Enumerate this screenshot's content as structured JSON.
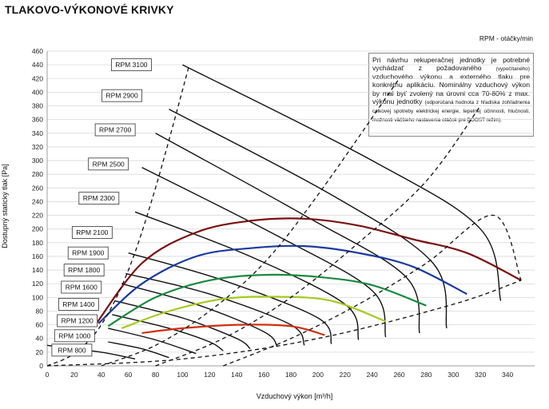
{
  "page": {
    "title": "TLAKOVO-VÝKONOVÉ KRIVKY",
    "rpm_legend": "RPM - otáčky/min"
  },
  "note": {
    "main": "Pri návrhu rekuperačnej jednotky je potrebné vychádzať z požadovaného",
    "paren1": "(vypočítaného)",
    "main2": "vzduchového výkonu a externého tlaku pre konkrétnu aplikáciu. Nominálny vzduchový výkon by mal byť zvolený na úrovni cca 70-80% z max. výkonu jednotky",
    "paren2": "(odporúčaná hodnota z hľadiska zohľadnenia celkovej spotreby elektrickej energie, tepelnej účinnosti, hlučnosti, možnosti väčšieho nastavenia otáčok pre BOOST režim)."
  },
  "chart_data": {
    "type": "line",
    "xlabel": "Vzduchový výkon [m³/h]",
    "ylabel": "Dostupný statický tlak [Pa]",
    "xlim": [
      0,
      360
    ],
    "ylim": [
      0,
      460
    ],
    "xticks": [
      0,
      20,
      40,
      60,
      80,
      100,
      120,
      140,
      160,
      180,
      200,
      220,
      240,
      260,
      280,
      300,
      320,
      340
    ],
    "yticks": [
      0,
      20,
      40,
      60,
      80,
      100,
      120,
      140,
      160,
      180,
      200,
      220,
      240,
      260,
      280,
      300,
      320,
      340,
      360,
      380,
      400,
      420,
      440,
      460
    ],
    "grid": "horizontal",
    "rpm_curves": [
      {
        "name": "RPM 800",
        "label_anchor": [
          33,
          23
        ],
        "x": [
          0,
          40,
          65
        ],
        "y": [
          30,
          20,
          10
        ]
      },
      {
        "name": "RPM 1000",
        "label_anchor": [
          35,
          44
        ],
        "x": [
          45,
          70,
          90
        ],
        "y": [
          35,
          25,
          12
        ]
      },
      {
        "name": "RPM 1200",
        "label_anchor": [
          37,
          66
        ],
        "x": [
          45,
          80,
          110
        ],
        "y": [
          55,
          38,
          18
        ]
      },
      {
        "name": "RPM 1400",
        "label_anchor": [
          38,
          90
        ],
        "x": [
          48,
          90,
          120,
          130
        ],
        "y": [
          75,
          55,
          35,
          22
        ]
      },
      {
        "name": "RPM 1600",
        "label_anchor": [
          40,
          115
        ],
        "x": [
          50,
          100,
          140,
          150
        ],
        "y": [
          95,
          70,
          40,
          25
        ]
      },
      {
        "name": "RPM 1800",
        "label_anchor": [
          42,
          140
        ],
        "x": [
          55,
          110,
          160,
          170
        ],
        "y": [
          120,
          90,
          50,
          28
        ]
      },
      {
        "name": "RPM 1900",
        "label_anchor": [
          45,
          165
        ],
        "x": [
          58,
          120,
          180,
          190
        ],
        "y": [
          135,
          105,
          60,
          30
        ]
      },
      {
        "name": "RPM 2100",
        "label_anchor": [
          48,
          195
        ],
        "x": [
          60,
          130,
          200,
          210
        ],
        "y": [
          165,
          125,
          70,
          32
        ]
      },
      {
        "name": "RPM 2300",
        "label_anchor": [
          53,
          245
        ],
        "x": [
          65,
          150,
          220,
          230
        ],
        "y": [
          225,
          160,
          90,
          38
        ]
      },
      {
        "name": "RPM 2500",
        "label_anchor": [
          60,
          295
        ],
        "x": [
          70,
          170,
          240,
          250
        ],
        "y": [
          290,
          190,
          110,
          42
        ]
      },
      {
        "name": "RPM 2700",
        "label_anchor": [
          65,
          345
        ],
        "x": [
          80,
          190,
          265,
          275
        ],
        "y": [
          340,
          220,
          130,
          48
        ]
      },
      {
        "name": "RPM 2900",
        "label_anchor": [
          70,
          395
        ],
        "x": [
          90,
          210,
          285,
          295
        ],
        "y": [
          375,
          250,
          150,
          55
        ]
      },
      {
        "name": "RPM 3100",
        "label_anchor": [
          77,
          440
        ],
        "x": [
          100,
          240,
          320,
          335
        ],
        "y": [
          440,
          300,
          200,
          95
        ]
      }
    ],
    "series": [
      {
        "name": "",
        "color": "#7b1010",
        "x": [
          35,
          70,
          110,
          150,
          190,
          230,
          270,
          310,
          350
        ],
        "y": [
          58,
          150,
          195,
          212,
          215,
          205,
          185,
          165,
          125
        ]
      },
      {
        "name": "",
        "color": "#1a3a9e",
        "x": [
          38,
          70,
          110,
          150,
          190,
          230,
          270,
          310
        ],
        "y": [
          62,
          120,
          160,
          172,
          175,
          165,
          145,
          105
        ]
      },
      {
        "name": "",
        "color": "#1a8a40",
        "x": [
          45,
          80,
          120,
          160,
          200,
          240,
          280
        ],
        "y": [
          58,
          100,
          125,
          133,
          130,
          118,
          88
        ]
      },
      {
        "name": "",
        "color": "#a8c820",
        "x": [
          55,
          90,
          130,
          170,
          210,
          250
        ],
        "y": [
          55,
          80,
          98,
          101,
          95,
          65
        ]
      },
      {
        "name": "",
        "color": "#d03010",
        "x": [
          70,
          100,
          140,
          180,
          205
        ],
        "y": [
          48,
          55,
          60,
          58,
          45
        ]
      }
    ],
    "dashed_lines": [
      {
        "x": [
          0,
          20,
          40,
          60,
          80,
          105
        ],
        "y": [
          0,
          18,
          60,
          140,
          260,
          440
        ]
      },
      {
        "x": [
          40,
          80,
          120,
          160,
          200,
          260
        ],
        "y": [
          0,
          30,
          80,
          150,
          250,
          420
        ]
      },
      {
        "x": [
          80,
          130,
          180,
          230,
          280,
          320
        ],
        "y": [
          0,
          40,
          100,
          180,
          270,
          380
        ]
      },
      {
        "x": [
          130,
          180,
          230,
          280,
          330,
          350
        ],
        "y": [
          0,
          40,
          90,
          150,
          220,
          125
        ]
      },
      {
        "x": [
          0,
          100,
          200,
          300,
          350
        ],
        "y": [
          0,
          10,
          40,
          90,
          125
        ]
      }
    ]
  }
}
